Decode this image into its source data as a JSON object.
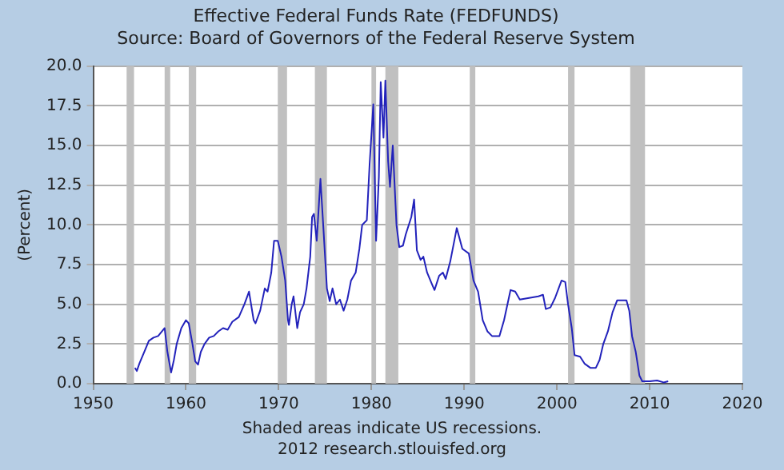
{
  "chart_data": {
    "type": "line",
    "title": "Effective Federal Funds Rate (FEDFUNDS)",
    "subtitle": "Source: Board of Governors of the Federal Reserve System",
    "ylabel": "(Percent)",
    "annotations": [
      "Shaded areas indicate US recessions.",
      "2012 research.stlouisfed.org"
    ],
    "xlim": [
      1950,
      2020
    ],
    "xticks": [
      1950,
      1960,
      1970,
      1980,
      1990,
      2000,
      2010,
      2020
    ],
    "ylim": [
      0,
      20
    ],
    "yticks": [
      {
        "value": 0,
        "label": "0.0"
      },
      {
        "value": 2.5,
        "label": "2.5"
      },
      {
        "value": 5,
        "label": "5.0"
      },
      {
        "value": 7.5,
        "label": "7.5"
      },
      {
        "value": 10,
        "label": "10.0"
      },
      {
        "value": 12.5,
        "label": "12.5"
      },
      {
        "value": 15,
        "label": "15.0"
      },
      {
        "value": 17.5,
        "label": "17.5"
      },
      {
        "value": 20,
        "label": "20.0"
      }
    ],
    "grid": "y",
    "legend": false,
    "bands": [
      {
        "axis": "x",
        "from": 1953.6,
        "to": 1954.4,
        "color": "#c0c0c0"
      },
      {
        "axis": "x",
        "from": 1957.7,
        "to": 1958.3,
        "color": "#c0c0c0"
      },
      {
        "axis": "x",
        "from": 1960.3,
        "to": 1961.1,
        "color": "#c0c0c0"
      },
      {
        "axis": "x",
        "from": 1969.9,
        "to": 1970.9,
        "color": "#c0c0c0"
      },
      {
        "axis": "x",
        "from": 1973.9,
        "to": 1975.2,
        "color": "#c0c0c0"
      },
      {
        "axis": "x",
        "from": 1980.0,
        "to": 1980.5,
        "color": "#c0c0c0"
      },
      {
        "axis": "x",
        "from": 1981.5,
        "to": 1982.9,
        "color": "#c0c0c0"
      },
      {
        "axis": "x",
        "from": 1990.6,
        "to": 1991.2,
        "color": "#c0c0c0"
      },
      {
        "axis": "x",
        "from": 2001.2,
        "to": 2001.9,
        "color": "#c0c0c0"
      },
      {
        "axis": "x",
        "from": 2007.9,
        "to": 2009.5,
        "color": "#c0c0c0"
      }
    ],
    "series": [
      {
        "color": "#2222bb",
        "x": [
          1954.5,
          1954.7,
          1955,
          1955.5,
          1956,
          1956.5,
          1957,
          1957.7,
          1958,
          1958.4,
          1958.7,
          1959,
          1959.5,
          1960,
          1960.3,
          1960.7,
          1961,
          1961.3,
          1961.6,
          1962,
          1962.5,
          1963,
          1963.5,
          1964,
          1964.5,
          1965,
          1965.7,
          1966.3,
          1966.8,
          1967.3,
          1967.5,
          1968,
          1968.5,
          1968.8,
          1969.2,
          1969.5,
          1969.9,
          1970.3,
          1970.7,
          1971,
          1971.1,
          1971.4,
          1971.6,
          1972,
          1972.3,
          1972.7,
          1973,
          1973.4,
          1973.6,
          1973.8,
          1974.1,
          1974.5,
          1974.8,
          1975.2,
          1975.5,
          1975.8,
          1976.2,
          1976.6,
          1977,
          1977.4,
          1977.8,
          1978.3,
          1978.7,
          1979,
          1979.5,
          1979.8,
          1980.2,
          1980.5,
          1980.8,
          1981,
          1981.3,
          1981.5,
          1981.8,
          1982,
          1982.3,
          1982.7,
          1983,
          1983.4,
          1983.7,
          1984.3,
          1984.6,
          1984.9,
          1985.3,
          1985.6,
          1986,
          1986.5,
          1986.8,
          1987.3,
          1987.7,
          1988,
          1988.5,
          1989.2,
          1989.8,
          1990.5,
          1991,
          1991.5,
          1992,
          1992.5,
          1993,
          1993.8,
          1994.3,
          1995,
          1995.5,
          1996,
          1997,
          1998,
          1998.5,
          1998.8,
          1999.3,
          1999.8,
          2000.5,
          2000.9,
          2001.2,
          2001.6,
          2001.9,
          2002.5,
          2003,
          2003.6,
          2004.2,
          2004.6,
          2005,
          2005.5,
          2006,
          2006.5,
          2007.5,
          2007.8,
          2008.1,
          2008.5,
          2008.9,
          2009.2,
          2010,
          2010.8,
          2011.5,
          2012
        ],
        "values": [
          1.0,
          0.8,
          1.3,
          2.0,
          2.7,
          2.9,
          3.0,
          3.5,
          2.0,
          0.7,
          1.5,
          2.5,
          3.5,
          4.0,
          3.8,
          2.5,
          1.4,
          1.2,
          2.0,
          2.5,
          2.9,
          3.0,
          3.3,
          3.5,
          3.4,
          3.9,
          4.2,
          5.0,
          5.8,
          4.0,
          3.8,
          4.6,
          6.0,
          5.8,
          7.0,
          9.0,
          9.0,
          8.0,
          6.5,
          4.0,
          3.7,
          5.0,
          5.5,
          3.5,
          4.5,
          5.0,
          6.0,
          8.0,
          10.5,
          10.7,
          9.0,
          12.9,
          10.0,
          6.0,
          5.2,
          6.0,
          5.0,
          5.3,
          4.6,
          5.3,
          6.5,
          7.0,
          8.5,
          10.0,
          10.3,
          13.8,
          17.6,
          9.0,
          13.0,
          19.0,
          15.5,
          19.1,
          14.0,
          12.4,
          15.0,
          10.0,
          8.6,
          8.7,
          9.4,
          10.5,
          11.6,
          8.4,
          7.8,
          8.0,
          7.0,
          6.3,
          5.9,
          6.8,
          7.0,
          6.6,
          7.7,
          9.8,
          8.5,
          8.2,
          6.5,
          5.8,
          4.0,
          3.3,
          3.0,
          3.0,
          4.0,
          5.9,
          5.8,
          5.3,
          5.4,
          5.5,
          5.6,
          4.7,
          4.8,
          5.4,
          6.5,
          6.4,
          5.0,
          3.5,
          1.8,
          1.7,
          1.25,
          1.0,
          1.0,
          1.5,
          2.5,
          3.3,
          4.5,
          5.25,
          5.25,
          4.6,
          3.0,
          2.0,
          0.5,
          0.15,
          0.15,
          0.2,
          0.08,
          0.15
        ]
      }
    ]
  }
}
